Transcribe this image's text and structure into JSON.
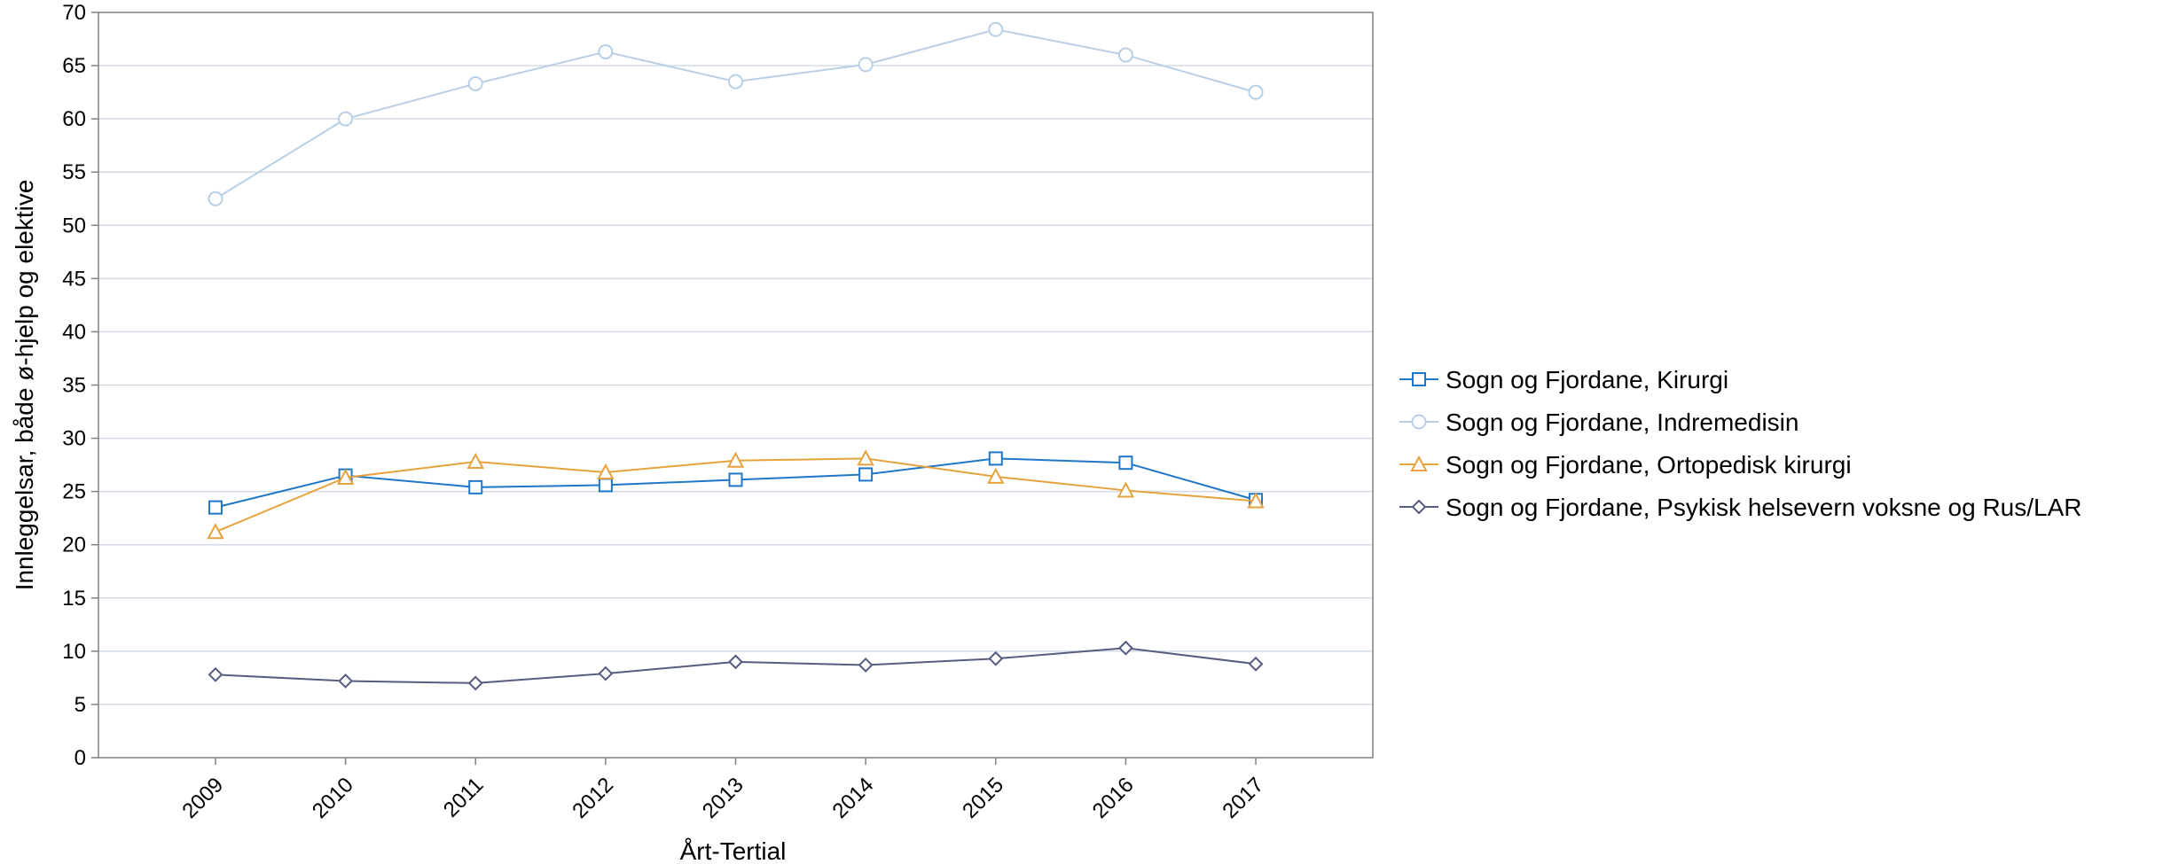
{
  "chart_data": {
    "type": "line",
    "xlabel": "Årt-Tertial",
    "ylabel": "Innleggelsar, både ø-hjelp og elektive",
    "ylim": [
      0,
      70
    ],
    "y_ticks": [
      "0",
      "5",
      "10",
      "15",
      "20",
      "25",
      "30",
      "35",
      "40",
      "45",
      "50",
      "55",
      "60",
      "65",
      "70"
    ],
    "categories": [
      "2009",
      "2010",
      "2011",
      "2012",
      "2013",
      "2014",
      "2015",
      "2016",
      "2017"
    ],
    "grid": "horizontal",
    "legend_position": "right",
    "series": [
      {
        "name": "Sogn og Fjordane, Kirurgi",
        "color": "#1f77c8",
        "marker": "square",
        "values": [
          23.5,
          26.5,
          25.4,
          25.6,
          26.1,
          26.6,
          28.1,
          27.7,
          24.2
        ]
      },
      {
        "name": "Sogn og Fjordane, Indremedisin",
        "color": "#b8cfe6",
        "marker": "circle",
        "values": [
          52.5,
          60.0,
          63.3,
          66.3,
          63.5,
          65.1,
          68.4,
          66.0,
          62.5
        ]
      },
      {
        "name": "Sogn og Fjordane, Ortopedisk kirurgi",
        "color": "#e6a23c",
        "marker": "triangle",
        "values": [
          21.2,
          26.3,
          27.8,
          26.8,
          27.9,
          28.1,
          26.4,
          25.1,
          24.1
        ]
      },
      {
        "name": "Sogn og Fjordane, Psykisk helsevern voksne og Rus/LAR",
        "color": "#565c80",
        "marker": "diamond",
        "values": [
          7.8,
          7.2,
          7.0,
          7.9,
          9.0,
          8.7,
          9.3,
          10.3,
          8.8
        ]
      }
    ]
  }
}
